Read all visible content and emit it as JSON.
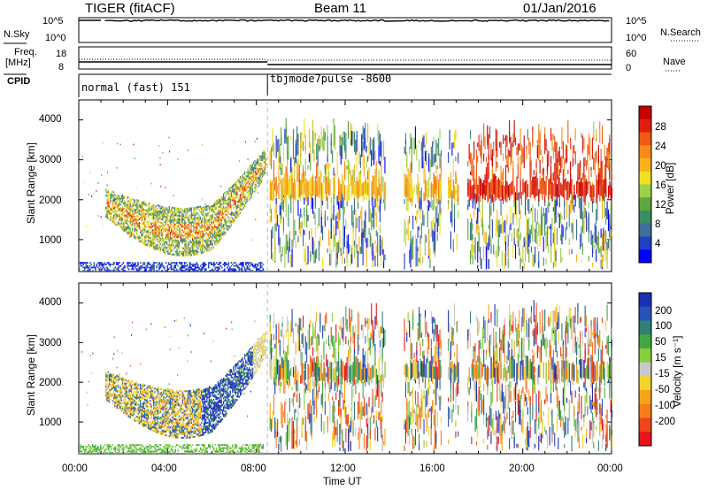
{
  "header": {
    "title": "TIGER (fitACF)",
    "beam": "Beam 11",
    "date": "01/Jan/2016"
  },
  "panels": {
    "nsky_label": "N.Sky",
    "nsearch_label": "N.Search",
    "nsky_ticks": [
      "10^5",
      "10^0"
    ],
    "nsearch_ticks": [
      "10^5",
      "10^0"
    ],
    "freq_label_1": "Freq.",
    "freq_label_2": "[MHz]",
    "freq_ticks": [
      "18",
      "8"
    ],
    "nave_label": "Nave",
    "nave_ticks": [
      "60",
      "0"
    ],
    "cpid_label": "CPID",
    "cpid_1": "normal (fast) 151",
    "cpid_2": "tbjmode7pulse -8600"
  },
  "axes": {
    "ylabel_1": "Slant Range [km]",
    "ylabel_2": "Slant Range [km]",
    "xlabel": "Time UT",
    "x_ticks": [
      "00:00",
      "04:00",
      "08:00",
      "12:00",
      "16:00",
      "20:00",
      "00:00"
    ],
    "y_ticks": [
      "4000",
      "3000",
      "2000",
      "1000"
    ]
  },
  "colorbars": {
    "power_label": "Power [dB]",
    "power_ticks": [
      "28",
      "24",
      "20",
      "16",
      "12",
      "8",
      "4"
    ],
    "velocity_label": "Velocity [m s⁻¹]",
    "velocity_ticks": [
      "200",
      "100",
      "50",
      "15",
      "-15",
      "-50",
      "-100",
      "-200"
    ]
  },
  "colors": {
    "power": [
      "#0000ff",
      "#2040c0",
      "#3f6f9a",
      "#3c8c66",
      "#5fa63c",
      "#9cd148",
      "#f0df22",
      "#f7b21c",
      "#f78a18",
      "#f05a14",
      "#e01e10",
      "#c80000"
    ],
    "velocity": [
      "#1b2fb5",
      "#2952b8",
      "#2f7f73",
      "#42a742",
      "#86cf3c",
      "#c8c8c8",
      "#f2d528",
      "#f7a31a",
      "#f77d1a",
      "#f0461a",
      "#e6141a"
    ]
  },
  "chart_data": [
    {
      "type": "heatmap",
      "name": "power",
      "xlim_hours": [
        0,
        24
      ],
      "ylim_km": [
        200,
        4500
      ],
      "colorbar_range_db": [
        0,
        32
      ],
      "scan_gap_hours": [
        [
          13.8,
          14.6
        ],
        [
          16.3,
          16.6
        ],
        [
          17.1,
          17.5
        ]
      ],
      "mode_change_hour": 8.5
    },
    {
      "type": "heatmap",
      "name": "velocity",
      "xlim_hours": [
        0,
        24
      ],
      "ylim_km": [
        200,
        4500
      ],
      "colorbar_range_ms": [
        -250,
        250
      ],
      "scan_gap_hours": [
        [
          13.8,
          14.6
        ],
        [
          16.3,
          16.6
        ],
        [
          17.1,
          17.5
        ]
      ],
      "mode_change_hour": 8.5
    }
  ]
}
